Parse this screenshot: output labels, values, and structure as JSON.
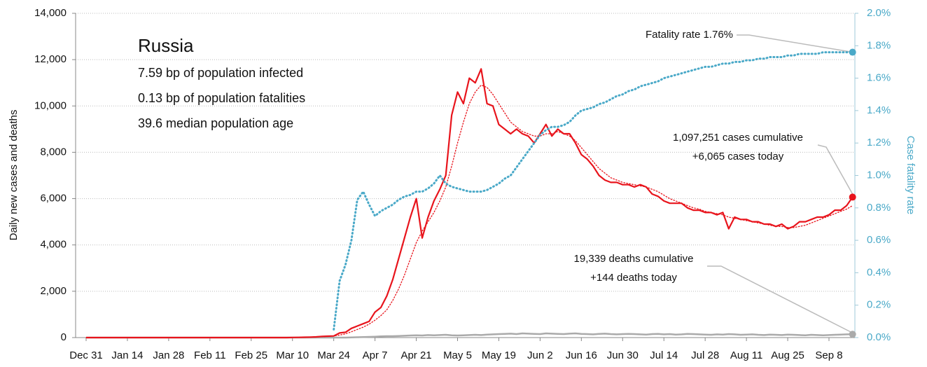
{
  "chart_data": {
    "type": "line",
    "title": "Russia",
    "subtitle_lines": [
      "7.59 bp of population infected",
      "0.13 bp of population fatalities",
      "39.6 median population age"
    ],
    "annotations": [
      "Fatality rate 1.76%",
      "1,097,251 cases cumulative",
      "+6,065 cases today",
      "19,339 deaths cumulative",
      "+144 deaths today"
    ],
    "y_label": "Daily new cases and deaths",
    "y2_label": "Case fatality rate",
    "grid": true,
    "ylim": [
      0,
      14000
    ],
    "yticks": [
      0,
      {
        "value": 2000,
        "label": "2,000"
      },
      {
        "value": 4000,
        "label": "4,000"
      },
      {
        "value": 6000,
        "label": "6,000"
      },
      {
        "value": 8000,
        "label": "8,000"
      },
      {
        "value": 10000,
        "label": "10,000"
      },
      {
        "value": 12000,
        "label": "12,000"
      },
      {
        "value": 14000,
        "label": "14,000"
      }
    ],
    "y2lim": [
      0,
      2
    ],
    "y2ticks": [
      {
        "value": 0,
        "label": "0.0%"
      },
      {
        "value": 0.2,
        "label": "0.2%"
      },
      {
        "value": 0.4,
        "label": "0.4%"
      },
      {
        "value": 0.6,
        "label": "0.6%"
      },
      {
        "value": 0.8,
        "label": "0.8%"
      },
      {
        "value": 1.0,
        "label": "1.0%"
      },
      {
        "value": 1.2,
        "label": "1.2%"
      },
      {
        "value": 1.4,
        "label": "1.4%"
      },
      {
        "value": 1.6,
        "label": "1.6%"
      },
      {
        "value": 1.8,
        "label": "1.8%"
      },
      {
        "value": 2.0,
        "label": "2.0%"
      }
    ],
    "categories": [
      "Dec 31",
      null,
      null,
      null,
      null,
      null,
      null,
      "Jan 14",
      null,
      null,
      null,
      null,
      null,
      null,
      "Jan 28",
      null,
      null,
      null,
      null,
      null,
      null,
      "Feb 11",
      null,
      null,
      null,
      null,
      null,
      null,
      "Feb 25",
      null,
      null,
      null,
      null,
      null,
      null,
      "Mar 10",
      null,
      null,
      null,
      null,
      null,
      null,
      "Mar 24",
      null,
      null,
      null,
      null,
      null,
      null,
      "Apr 7",
      null,
      null,
      null,
      null,
      null,
      null,
      "Apr 21",
      null,
      null,
      null,
      null,
      null,
      null,
      "May 5",
      null,
      null,
      null,
      null,
      null,
      null,
      "May 19",
      null,
      null,
      null,
      null,
      null,
      null,
      "Jun 2",
      null,
      null,
      null,
      null,
      null,
      null,
      "Jun 16",
      null,
      null,
      null,
      null,
      null,
      null,
      "Jun 30",
      null,
      null,
      null,
      null,
      null,
      null,
      "Jul 14",
      null,
      null,
      null,
      null,
      null,
      null,
      "Jul 28",
      null,
      null,
      null,
      null,
      null,
      null,
      "Aug 11",
      null,
      null,
      null,
      null,
      null,
      null,
      "Aug 25",
      null,
      null,
      null,
      null,
      null,
      null,
      "Sep 8",
      null,
      null,
      null,
      null
    ],
    "series": [
      {
        "color": "#aaaaaa",
        "style": "solid",
        "width": 2.5,
        "end_marker": true,
        "values": [
          0,
          0,
          0,
          0,
          0,
          0,
          0,
          0,
          0,
          0,
          0,
          0,
          0,
          0,
          0,
          0,
          0,
          0,
          0,
          0,
          0,
          0,
          0,
          0,
          0,
          0,
          0,
          0,
          0,
          0,
          0,
          0,
          0,
          0,
          0,
          0,
          0,
          0,
          0,
          0,
          0,
          0,
          0,
          0,
          0,
          10,
          15,
          20,
          30,
          40,
          50,
          60,
          60,
          70,
          80,
          90,
          100,
          90,
          110,
          100,
          110,
          120,
          100,
          90,
          100,
          110,
          120,
          110,
          130,
          140,
          150,
          160,
          170,
          150,
          180,
          170,
          160,
          150,
          180,
          170,
          160,
          150,
          170,
          180,
          160,
          150,
          140,
          160,
          170,
          150,
          140,
          150,
          160,
          150,
          140,
          130,
          150,
          160,
          140,
          150,
          130,
          140,
          160,
          150,
          140,
          130,
          120,
          140,
          130,
          150,
          140,
          120,
          130,
          140,
          120,
          110,
          130,
          120,
          110,
          130,
          120,
          110,
          100,
          120,
          110,
          100,
          110,
          120,
          130,
          140,
          144
        ]
      },
      {
        "color": "#e8141c",
        "style": "dotted",
        "width": 1.3,
        "end_marker": false,
        "values": [
          0,
          0,
          0,
          0,
          0,
          0,
          0,
          0,
          0,
          0,
          0,
          0,
          0,
          0,
          0,
          0,
          0,
          0,
          0,
          0,
          0,
          0,
          0,
          0,
          0,
          0,
          0,
          0,
          0,
          0,
          0,
          0,
          0,
          0,
          0,
          3,
          6,
          10,
          15,
          25,
          40,
          50,
          70,
          110,
          160,
          250,
          350,
          450,
          580,
          750,
          950,
          1200,
          1600,
          2100,
          2700,
          3400,
          4100,
          4600,
          5000,
          5400,
          5900,
          6500,
          7400,
          8400,
          9300,
          10100,
          10600,
          10900,
          10800,
          10500,
          10100,
          9700,
          9300,
          9100,
          8900,
          8800,
          8700,
          8700,
          8800,
          8800,
          8900,
          8800,
          8700,
          8500,
          8200,
          7900,
          7600,
          7300,
          7100,
          6900,
          6800,
          6700,
          6650,
          6600,
          6550,
          6500,
          6400,
          6300,
          6150,
          6000,
          5900,
          5800,
          5700,
          5600,
          5550,
          5450,
          5400,
          5350,
          5300,
          5200,
          5150,
          5100,
          5050,
          5000,
          4950,
          4900,
          4850,
          4800,
          4800,
          4750,
          4750,
          4800,
          4850,
          4950,
          5050,
          5150,
          5250,
          5350,
          5450,
          5550,
          5700
        ]
      },
      {
        "color": "#e8141c",
        "style": "solid",
        "width": 2.2,
        "end_marker": true,
        "values": [
          0,
          0,
          0,
          0,
          0,
          0,
          0,
          0,
          0,
          0,
          0,
          0,
          0,
          0,
          0,
          0,
          0,
          0,
          0,
          0,
          0,
          0,
          0,
          0,
          0,
          0,
          0,
          0,
          0,
          0,
          0,
          0,
          0,
          0,
          0,
          5,
          10,
          15,
          20,
          30,
          50,
          60,
          70,
          200,
          230,
          400,
          500,
          600,
          700,
          1100,
          1300,
          1800,
          2500,
          3400,
          4300,
          5200,
          6000,
          4300,
          5200,
          5900,
          6400,
          7000,
          9600,
          10600,
          10100,
          11200,
          11000,
          11600,
          10100,
          10000,
          9200,
          9000,
          8800,
          9000,
          8800,
          8700,
          8400,
          8800,
          9200,
          8700,
          9000,
          8800,
          8800,
          8400,
          7900,
          7700,
          7400,
          7000,
          6800,
          6700,
          6700,
          6600,
          6600,
          6500,
          6600,
          6500,
          6200,
          6100,
          5900,
          5800,
          5800,
          5800,
          5600,
          5500,
          5500,
          5400,
          5400,
          5300,
          5400,
          4700,
          5200,
          5100,
          5100,
          5000,
          5000,
          4900,
          4900,
          4800,
          4900,
          4700,
          4800,
          5000,
          5000,
          5100,
          5200,
          5200,
          5300,
          5500,
          5500,
          5700,
          6065
        ]
      },
      {
        "color": "#4aa9c8",
        "style": "dotted",
        "width": 3,
        "axis": "y2",
        "end_marker": true,
        "values": [
          null,
          null,
          null,
          null,
          null,
          null,
          null,
          null,
          null,
          null,
          null,
          null,
          null,
          null,
          null,
          null,
          null,
          null,
          null,
          null,
          null,
          null,
          null,
          null,
          null,
          null,
          null,
          null,
          null,
          null,
          null,
          null,
          null,
          null,
          null,
          null,
          null,
          null,
          null,
          null,
          null,
          null,
          0.05,
          0.35,
          0.45,
          0.6,
          0.85,
          0.9,
          0.82,
          0.75,
          0.78,
          0.8,
          0.82,
          0.85,
          0.87,
          0.88,
          0.9,
          0.9,
          0.92,
          0.95,
          1.0,
          0.95,
          0.93,
          0.92,
          0.91,
          0.9,
          0.9,
          0.9,
          0.91,
          0.93,
          0.95,
          0.98,
          1.0,
          1.05,
          1.1,
          1.15,
          1.2,
          1.25,
          1.28,
          1.3,
          1.3,
          1.31,
          1.33,
          1.37,
          1.4,
          1.41,
          1.42,
          1.44,
          1.45,
          1.47,
          1.49,
          1.5,
          1.52,
          1.53,
          1.55,
          1.56,
          1.57,
          1.58,
          1.6,
          1.61,
          1.62,
          1.63,
          1.64,
          1.65,
          1.66,
          1.67,
          1.67,
          1.68,
          1.69,
          1.69,
          1.7,
          1.7,
          1.71,
          1.71,
          1.72,
          1.72,
          1.73,
          1.73,
          1.73,
          1.74,
          1.74,
          1.75,
          1.75,
          1.75,
          1.75,
          1.76,
          1.76,
          1.76,
          1.76,
          1.76,
          1.76
        ]
      }
    ]
  }
}
